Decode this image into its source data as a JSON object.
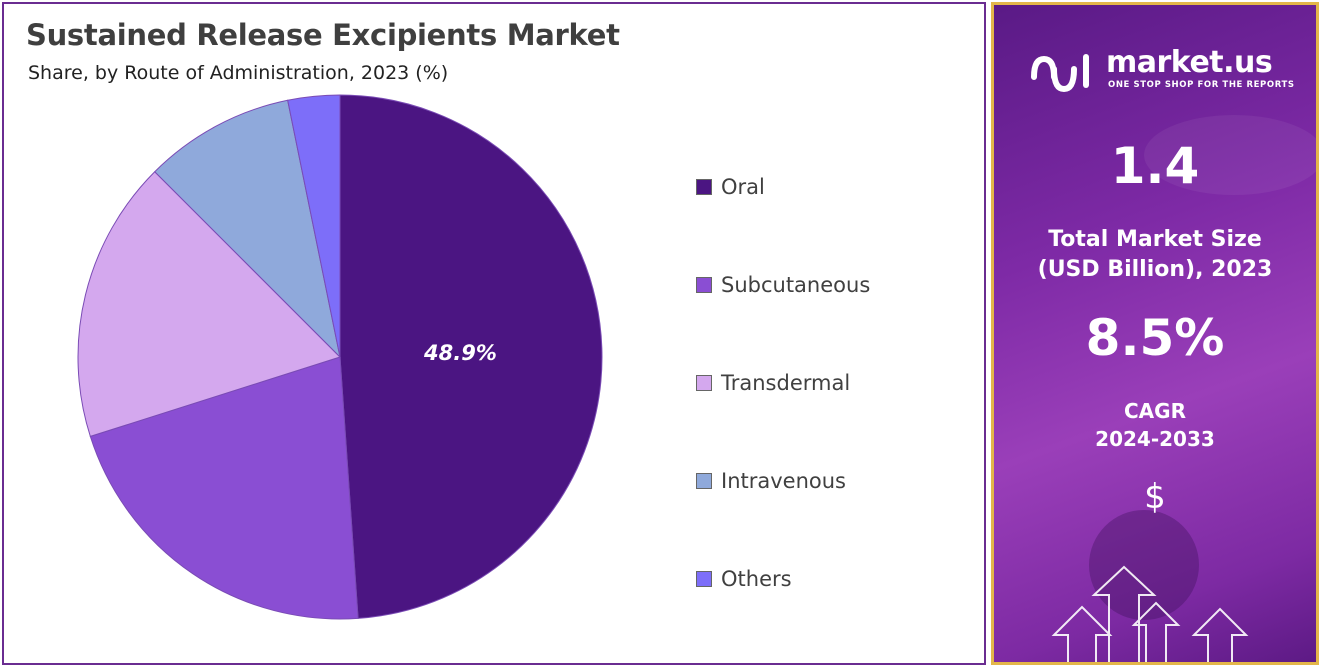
{
  "chart_data": {
    "type": "pie",
    "title": "Sustained Release Excipients Market",
    "subtitle": "Share, by Route of Administration, 2023 (%)",
    "categories": [
      "Oral",
      "Subcutaneous",
      "Transdermal",
      "Intravenous",
      "Others"
    ],
    "values": [
      48.9,
      21.2,
      17.4,
      9.3,
      3.2
    ],
    "data_labels": [
      "48.9%",
      "",
      "",
      "",
      ""
    ],
    "colors": [
      "#4b1582",
      "#8a4ed3",
      "#d4a8ee",
      "#8fa9db",
      "#7d6ef9"
    ],
    "start_angle": "12 o'clock",
    "direction": "clockwise",
    "legend_position": "right"
  },
  "sidebar": {
    "logo_text": "market.us",
    "logo_tagline": "ONE STOP SHOP FOR THE REPORTS",
    "market_size_value": "1.4",
    "market_size_label_line1": "Total Market Size",
    "market_size_label_line2": "(USD Billion), 2023",
    "cagr_value": "8.5%",
    "cagr_label_line1": "CAGR",
    "cagr_label_line2": "2024-2033",
    "dollar_symbol": "$",
    "border_color": "#e3b64a",
    "icons": [
      "market-us-logo-icon",
      "dollar-icon",
      "up-arrow-icon"
    ]
  }
}
